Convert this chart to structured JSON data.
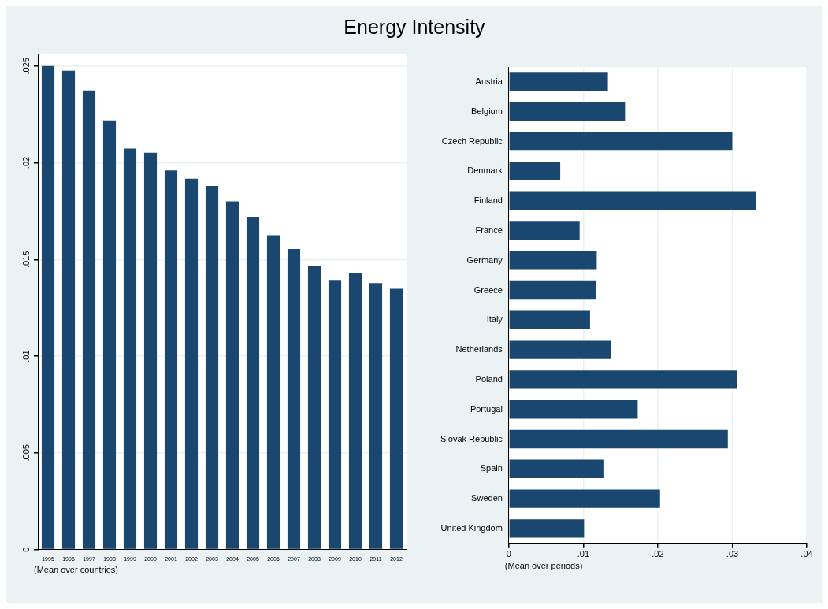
{
  "chart_data": [
    {
      "type": "bar",
      "title": "Energy Intensity",
      "categories": [
        "1995",
        "1996",
        "1997",
        "1998",
        "1999",
        "2000",
        "2001",
        "2002",
        "2003",
        "2004",
        "2005",
        "2006",
        "2007",
        "2008",
        "2009",
        "2010",
        "2011",
        "2012"
      ],
      "values": [
        0.025,
        0.02475,
        0.02374,
        0.02219,
        0.02073,
        0.02052,
        0.0196,
        0.01918,
        0.0188,
        0.018,
        0.01717,
        0.01625,
        0.01554,
        0.01466,
        0.0139,
        0.01432,
        0.01378,
        0.01348
      ],
      "color": "#1a476f",
      "ylim": [
        0,
        0.0256
      ],
      "yticks": [
        {
          "value": 0,
          "label": "0"
        },
        {
          "value": 0.005,
          "label": ".005"
        },
        {
          "value": 0.01,
          "label": ".01"
        },
        {
          "value": 0.015,
          "label": ".015"
        },
        {
          "value": 0.02,
          "label": ".02"
        },
        {
          "value": 0.025,
          "label": ".025"
        }
      ],
      "grid": "y",
      "annotations": [
        "(Mean over countries)"
      ]
    },
    {
      "type": "bar",
      "orientation": "horizontal",
      "categories": [
        "Austria",
        "Belgium",
        "Czech Republic",
        "Denmark",
        "Finland",
        "France",
        "Germany",
        "Greece",
        "Italy",
        "Netherlands",
        "Poland",
        "Portugal",
        "Slovak Republic",
        "Spain",
        "Sweden",
        "United Kingdom"
      ],
      "values": [
        0.0133,
        0.0156,
        0.03,
        0.0069,
        0.0332,
        0.0095,
        0.0118,
        0.0117,
        0.0109,
        0.0137,
        0.0306,
        0.0173,
        0.0294,
        0.0128,
        0.0203,
        0.0101
      ],
      "color": "#1a476f",
      "xlim": [
        0,
        0.04
      ],
      "xticks": [
        {
          "value": 0,
          "label": "0"
        },
        {
          "value": 0.01,
          "label": ".01"
        },
        {
          "value": 0.02,
          "label": ".02"
        },
        {
          "value": 0.03,
          "label": ".03"
        },
        {
          "value": 0.04,
          "label": ".04"
        }
      ],
      "grid": "x",
      "annotations": [
        "(Mean over periods)"
      ]
    }
  ]
}
